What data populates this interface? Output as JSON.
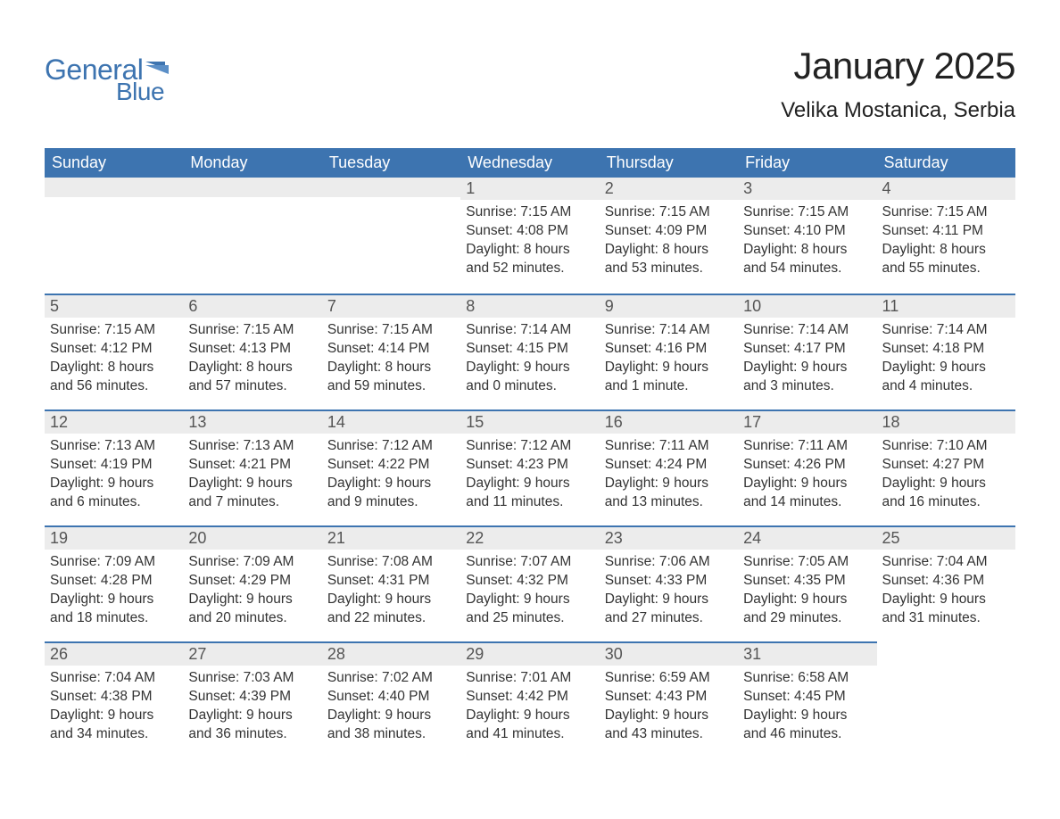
{
  "logo": {
    "general": "General",
    "blue": "Blue"
  },
  "title": "January 2025",
  "location": "Velika Mostanica, Serbia",
  "colors": {
    "brand": "#3d74b0",
    "header_bg": "#3d74b0",
    "header_text": "#ffffff",
    "daynum_bg": "#ececec",
    "body_text": "#333333",
    "background": "#ffffff"
  },
  "typography": {
    "title_fontsize": 42,
    "location_fontsize": 24,
    "header_fontsize": 18,
    "daynum_fontsize": 18,
    "body_fontsize": 15.5
  },
  "layout": {
    "columns": 7,
    "rows": 5,
    "blank_leading": 3
  },
  "day_headers": [
    "Sunday",
    "Monday",
    "Tuesday",
    "Wednesday",
    "Thursday",
    "Friday",
    "Saturday"
  ],
  "days": [
    {
      "n": 1,
      "sunrise": "7:15 AM",
      "sunset": "4:08 PM",
      "daylight": "8 hours and 52 minutes."
    },
    {
      "n": 2,
      "sunrise": "7:15 AM",
      "sunset": "4:09 PM",
      "daylight": "8 hours and 53 minutes."
    },
    {
      "n": 3,
      "sunrise": "7:15 AM",
      "sunset": "4:10 PM",
      "daylight": "8 hours and 54 minutes."
    },
    {
      "n": 4,
      "sunrise": "7:15 AM",
      "sunset": "4:11 PM",
      "daylight": "8 hours and 55 minutes."
    },
    {
      "n": 5,
      "sunrise": "7:15 AM",
      "sunset": "4:12 PM",
      "daylight": "8 hours and 56 minutes."
    },
    {
      "n": 6,
      "sunrise": "7:15 AM",
      "sunset": "4:13 PM",
      "daylight": "8 hours and 57 minutes."
    },
    {
      "n": 7,
      "sunrise": "7:15 AM",
      "sunset": "4:14 PM",
      "daylight": "8 hours and 59 minutes."
    },
    {
      "n": 8,
      "sunrise": "7:14 AM",
      "sunset": "4:15 PM",
      "daylight": "9 hours and 0 minutes."
    },
    {
      "n": 9,
      "sunrise": "7:14 AM",
      "sunset": "4:16 PM",
      "daylight": "9 hours and 1 minute."
    },
    {
      "n": 10,
      "sunrise": "7:14 AM",
      "sunset": "4:17 PM",
      "daylight": "9 hours and 3 minutes."
    },
    {
      "n": 11,
      "sunrise": "7:14 AM",
      "sunset": "4:18 PM",
      "daylight": "9 hours and 4 minutes."
    },
    {
      "n": 12,
      "sunrise": "7:13 AM",
      "sunset": "4:19 PM",
      "daylight": "9 hours and 6 minutes."
    },
    {
      "n": 13,
      "sunrise": "7:13 AM",
      "sunset": "4:21 PM",
      "daylight": "9 hours and 7 minutes."
    },
    {
      "n": 14,
      "sunrise": "7:12 AM",
      "sunset": "4:22 PM",
      "daylight": "9 hours and 9 minutes."
    },
    {
      "n": 15,
      "sunrise": "7:12 AM",
      "sunset": "4:23 PM",
      "daylight": "9 hours and 11 minutes."
    },
    {
      "n": 16,
      "sunrise": "7:11 AM",
      "sunset": "4:24 PM",
      "daylight": "9 hours and 13 minutes."
    },
    {
      "n": 17,
      "sunrise": "7:11 AM",
      "sunset": "4:26 PM",
      "daylight": "9 hours and 14 minutes."
    },
    {
      "n": 18,
      "sunrise": "7:10 AM",
      "sunset": "4:27 PM",
      "daylight": "9 hours and 16 minutes."
    },
    {
      "n": 19,
      "sunrise": "7:09 AM",
      "sunset": "4:28 PM",
      "daylight": "9 hours and 18 minutes."
    },
    {
      "n": 20,
      "sunrise": "7:09 AM",
      "sunset": "4:29 PM",
      "daylight": "9 hours and 20 minutes."
    },
    {
      "n": 21,
      "sunrise": "7:08 AM",
      "sunset": "4:31 PM",
      "daylight": "9 hours and 22 minutes."
    },
    {
      "n": 22,
      "sunrise": "7:07 AM",
      "sunset": "4:32 PM",
      "daylight": "9 hours and 25 minutes."
    },
    {
      "n": 23,
      "sunrise": "7:06 AM",
      "sunset": "4:33 PM",
      "daylight": "9 hours and 27 minutes."
    },
    {
      "n": 24,
      "sunrise": "7:05 AM",
      "sunset": "4:35 PM",
      "daylight": "9 hours and 29 minutes."
    },
    {
      "n": 25,
      "sunrise": "7:04 AM",
      "sunset": "4:36 PM",
      "daylight": "9 hours and 31 minutes."
    },
    {
      "n": 26,
      "sunrise": "7:04 AM",
      "sunset": "4:38 PM",
      "daylight": "9 hours and 34 minutes."
    },
    {
      "n": 27,
      "sunrise": "7:03 AM",
      "sunset": "4:39 PM",
      "daylight": "9 hours and 36 minutes."
    },
    {
      "n": 28,
      "sunrise": "7:02 AM",
      "sunset": "4:40 PM",
      "daylight": "9 hours and 38 minutes."
    },
    {
      "n": 29,
      "sunrise": "7:01 AM",
      "sunset": "4:42 PM",
      "daylight": "9 hours and 41 minutes."
    },
    {
      "n": 30,
      "sunrise": "6:59 AM",
      "sunset": "4:43 PM",
      "daylight": "9 hours and 43 minutes."
    },
    {
      "n": 31,
      "sunrise": "6:58 AM",
      "sunset": "4:45 PM",
      "daylight": "9 hours and 46 minutes."
    }
  ],
  "labels": {
    "sunrise": "Sunrise:",
    "sunset": "Sunset:",
    "daylight": "Daylight:"
  }
}
